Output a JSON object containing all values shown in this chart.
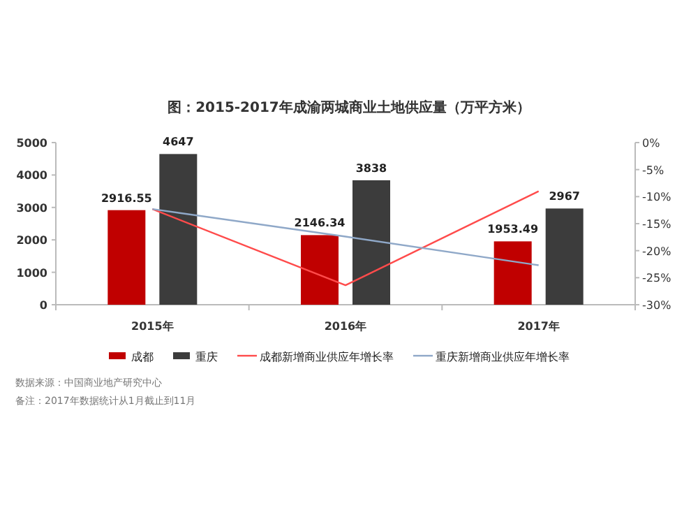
{
  "chart_data": {
    "type": "bar",
    "title": "图：2015-2017年成渝两城商业土地供应量（万平方米）",
    "categories": [
      "2015年",
      "2016年",
      "2017年"
    ],
    "series": [
      {
        "name": "成都",
        "color": "#c00000",
        "values": [
          2916.55,
          2146.34,
          1953.49
        ],
        "value_labels": [
          "2916.55",
          "2146.34",
          "1953.49"
        ]
      },
      {
        "name": "重庆",
        "color": "#3c3c3c",
        "values": [
          4647,
          3838,
          2967
        ],
        "value_labels": [
          "4647",
          "3838",
          "2967"
        ]
      },
      {
        "name": "成都新增商业供应年增长率",
        "type": "line",
        "axis": "y2",
        "color": "#ff4b4b",
        "values": [
          -12.3,
          -26.4,
          -9.0
        ]
      },
      {
        "name": "重庆新增商业供应年增长率",
        "type": "line",
        "axis": "y2",
        "color": "#8fa8c8",
        "values": [
          -12.3,
          -17.4,
          -22.7
        ]
      }
    ],
    "ylim": [
      0,
      5000
    ],
    "yticks": [
      0,
      1000,
      2000,
      3000,
      4000,
      5000
    ],
    "y2lim": [
      -30,
      0
    ],
    "y2ticks": [
      {
        "value": 0,
        "label": "0%"
      },
      {
        "value": -5,
        "label": "-5%"
      },
      {
        "value": -10,
        "label": "-10%"
      },
      {
        "value": -15,
        "label": "-15%"
      },
      {
        "value": -20,
        "label": "-20%"
      },
      {
        "value": -25,
        "label": "-25%"
      },
      {
        "value": -30,
        "label": "-30%"
      }
    ],
    "legend": "bottom",
    "annotations": [
      "数据来源：中国商业地产研究中心",
      "备注：2017年数据统计从1月截止到11月"
    ]
  }
}
